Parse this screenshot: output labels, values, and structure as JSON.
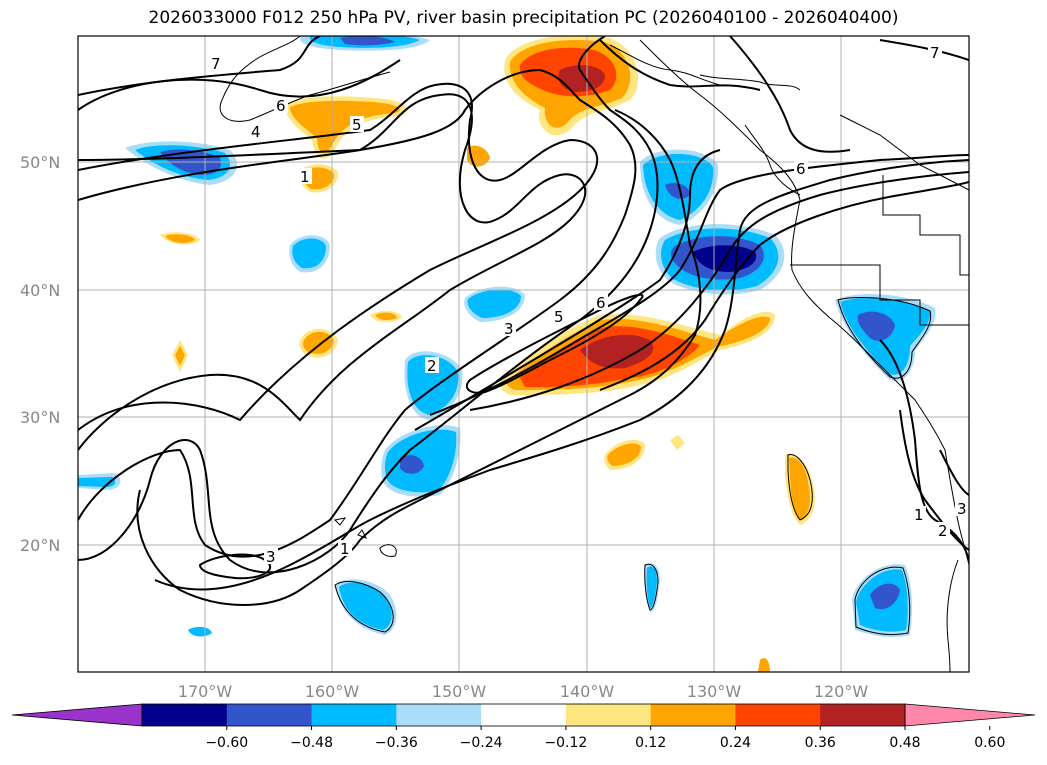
{
  "title": "2026033000 F012 250 hPa PV, river basin precipitation PC (2026040100 - 2026040400)",
  "lat_labels": [
    "50°N",
    "40°N",
    "30°N",
    "20°N"
  ],
  "lon_labels": [
    "170°W",
    "160°W",
    "150°W",
    "140°W",
    "130°W",
    "120°W"
  ],
  "pv_contour_labels": [
    "7",
    "6",
    "5",
    "4",
    "1",
    "3",
    "5",
    "6",
    "2",
    "7",
    "6",
    "1",
    "3",
    "1",
    "2",
    "3"
  ],
  "colorbar": {
    "ticks": [
      "−0.60",
      "−0.48",
      "−0.36",
      "−0.24",
      "−0.12",
      "0.12",
      "0.24",
      "0.36",
      "0.48",
      "0.60"
    ],
    "colors": [
      "#9933cc",
      "#00008b",
      "#3355cc",
      "#00bbff",
      "#aaddf8",
      "#ffffff",
      "#ffe680",
      "#ffa500",
      "#ff4400",
      "#b22222",
      "#ff88aa"
    ]
  }
}
